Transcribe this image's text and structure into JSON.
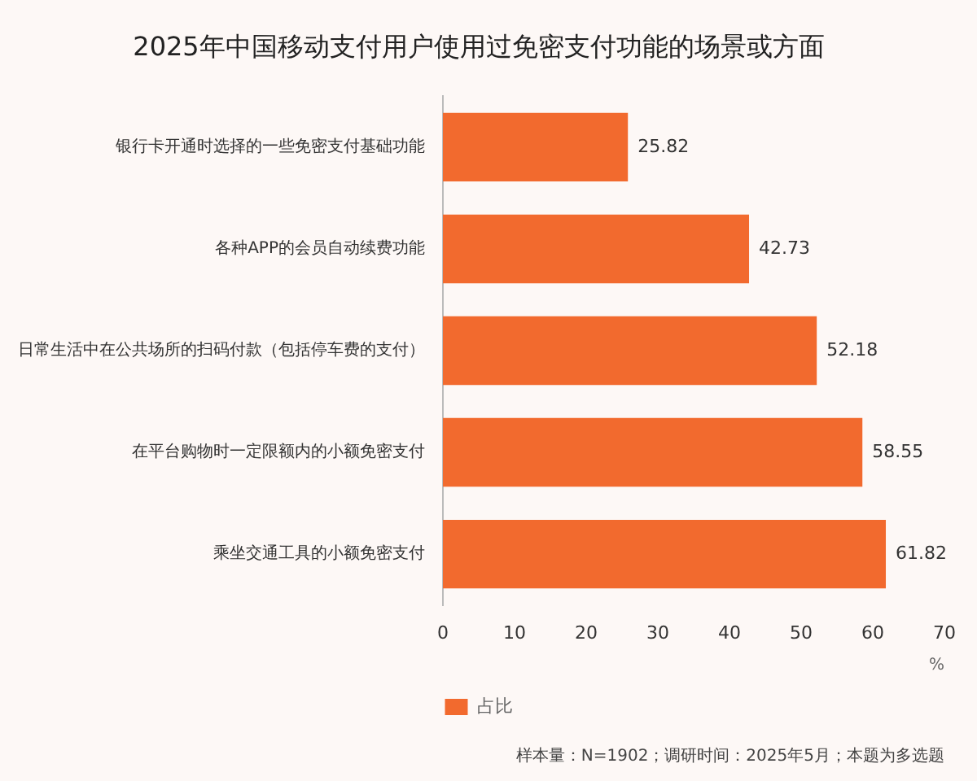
{
  "chart_data": {
    "type": "bar",
    "orientation": "horizontal",
    "title": "2025年中国移动支付用户使用过免密支付功能的场景或方面",
    "categories": [
      "银行卡开通时选择的一些免密支付基础功能",
      "各种APP的会员自动续费功能",
      "日常生活中在公共场所的扫码付款（包括停车费的支付）",
      "在平台购物时一定限额内的小额免密支付",
      "乘坐交通工具的小额免密支付"
    ],
    "series": [
      {
        "name": "占比",
        "color": "#f26a2e",
        "values": [
          25.82,
          42.73,
          52.18,
          58.55,
          61.82
        ]
      }
    ],
    "xlim": [
      0,
      70
    ],
    "xticks": [
      0,
      10,
      20,
      30,
      40,
      50,
      60,
      70
    ],
    "xlabel": "%",
    "grid": false,
    "legend": "bottom",
    "data_labels": true,
    "annotations": [
      "样本量：N=1902；调研时间：2025年5月；本题为多选题"
    ]
  }
}
